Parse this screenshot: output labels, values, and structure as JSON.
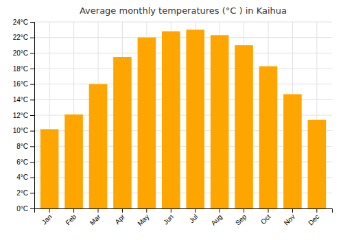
{
  "chart_data": {
    "type": "bar",
    "title": "Average monthly temperatures (°C ) in Kaihua",
    "categories": [
      "Jan",
      "Feb",
      "Mar",
      "Apr",
      "May",
      "Jun",
      "Jul",
      "Aug",
      "Sep",
      "Oct",
      "Nov",
      "Dec"
    ],
    "values": [
      10.2,
      12.1,
      16.0,
      19.5,
      22.0,
      22.8,
      23.0,
      22.3,
      21.0,
      18.3,
      14.7,
      11.4
    ],
    "color": "#FFA500",
    "ylim": [
      0,
      24
    ],
    "yticks": [
      {
        "value": 0,
        "label": "0°C"
      },
      {
        "value": 2,
        "label": "2°C"
      },
      {
        "value": 4,
        "label": "4°C"
      },
      {
        "value": 6,
        "label": "6°C"
      },
      {
        "value": 8,
        "label": "8°C"
      },
      {
        "value": 10,
        "label": "10°C"
      },
      {
        "value": 12,
        "label": "12°C"
      },
      {
        "value": 14,
        "label": "14°C"
      },
      {
        "value": 16,
        "label": "16°C"
      },
      {
        "value": 18,
        "label": "18°C"
      },
      {
        "value": 20,
        "label": "20°C"
      },
      {
        "value": 22,
        "label": "22°C"
      },
      {
        "value": 24,
        "label": "24°C"
      }
    ],
    "grid": true
  }
}
